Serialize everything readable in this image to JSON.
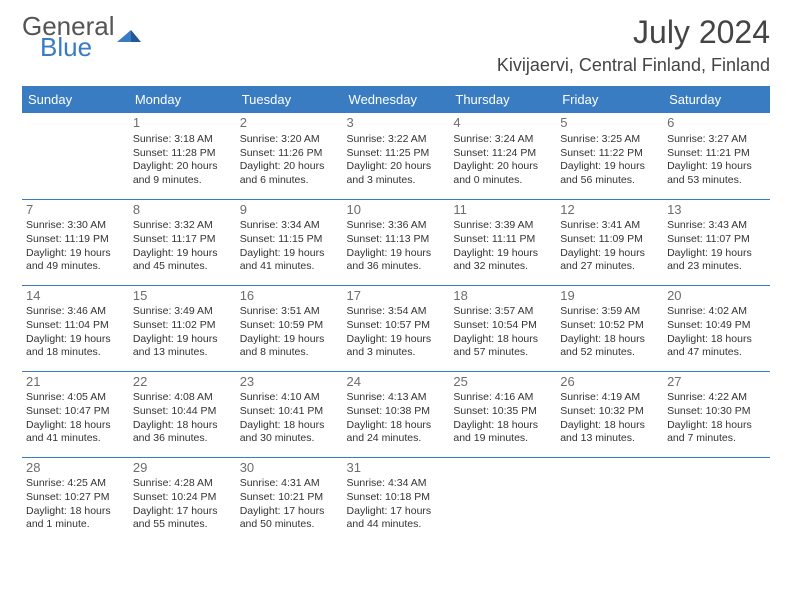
{
  "brand": {
    "line1": "General",
    "line2": "Blue"
  },
  "title": "July 2024",
  "location": "Kivijaervi, Central Finland, Finland",
  "colors": {
    "header_bg": "#3a7cc2",
    "header_fg": "#ffffff",
    "text": "#333333",
    "rule": "#3a7cc2",
    "brand_gray": "#555555",
    "brand_blue": "#3a7cc2"
  },
  "weekdays": [
    "Sunday",
    "Monday",
    "Tuesday",
    "Wednesday",
    "Thursday",
    "Friday",
    "Saturday"
  ],
  "weeks": [
    [
      null,
      {
        "d": "1",
        "sr": "Sunrise: 3:18 AM",
        "ss": "Sunset: 11:28 PM",
        "dl1": "Daylight: 20 hours",
        "dl2": "and 9 minutes."
      },
      {
        "d": "2",
        "sr": "Sunrise: 3:20 AM",
        "ss": "Sunset: 11:26 PM",
        "dl1": "Daylight: 20 hours",
        "dl2": "and 6 minutes."
      },
      {
        "d": "3",
        "sr": "Sunrise: 3:22 AM",
        "ss": "Sunset: 11:25 PM",
        "dl1": "Daylight: 20 hours",
        "dl2": "and 3 minutes."
      },
      {
        "d": "4",
        "sr": "Sunrise: 3:24 AM",
        "ss": "Sunset: 11:24 PM",
        "dl1": "Daylight: 20 hours",
        "dl2": "and 0 minutes."
      },
      {
        "d": "5",
        "sr": "Sunrise: 3:25 AM",
        "ss": "Sunset: 11:22 PM",
        "dl1": "Daylight: 19 hours",
        "dl2": "and 56 minutes."
      },
      {
        "d": "6",
        "sr": "Sunrise: 3:27 AM",
        "ss": "Sunset: 11:21 PM",
        "dl1": "Daylight: 19 hours",
        "dl2": "and 53 minutes."
      }
    ],
    [
      {
        "d": "7",
        "sr": "Sunrise: 3:30 AM",
        "ss": "Sunset: 11:19 PM",
        "dl1": "Daylight: 19 hours",
        "dl2": "and 49 minutes."
      },
      {
        "d": "8",
        "sr": "Sunrise: 3:32 AM",
        "ss": "Sunset: 11:17 PM",
        "dl1": "Daylight: 19 hours",
        "dl2": "and 45 minutes."
      },
      {
        "d": "9",
        "sr": "Sunrise: 3:34 AM",
        "ss": "Sunset: 11:15 PM",
        "dl1": "Daylight: 19 hours",
        "dl2": "and 41 minutes."
      },
      {
        "d": "10",
        "sr": "Sunrise: 3:36 AM",
        "ss": "Sunset: 11:13 PM",
        "dl1": "Daylight: 19 hours",
        "dl2": "and 36 minutes."
      },
      {
        "d": "11",
        "sr": "Sunrise: 3:39 AM",
        "ss": "Sunset: 11:11 PM",
        "dl1": "Daylight: 19 hours",
        "dl2": "and 32 minutes."
      },
      {
        "d": "12",
        "sr": "Sunrise: 3:41 AM",
        "ss": "Sunset: 11:09 PM",
        "dl1": "Daylight: 19 hours",
        "dl2": "and 27 minutes."
      },
      {
        "d": "13",
        "sr": "Sunrise: 3:43 AM",
        "ss": "Sunset: 11:07 PM",
        "dl1": "Daylight: 19 hours",
        "dl2": "and 23 minutes."
      }
    ],
    [
      {
        "d": "14",
        "sr": "Sunrise: 3:46 AM",
        "ss": "Sunset: 11:04 PM",
        "dl1": "Daylight: 19 hours",
        "dl2": "and 18 minutes."
      },
      {
        "d": "15",
        "sr": "Sunrise: 3:49 AM",
        "ss": "Sunset: 11:02 PM",
        "dl1": "Daylight: 19 hours",
        "dl2": "and 13 minutes."
      },
      {
        "d": "16",
        "sr": "Sunrise: 3:51 AM",
        "ss": "Sunset: 10:59 PM",
        "dl1": "Daylight: 19 hours",
        "dl2": "and 8 minutes."
      },
      {
        "d": "17",
        "sr": "Sunrise: 3:54 AM",
        "ss": "Sunset: 10:57 PM",
        "dl1": "Daylight: 19 hours",
        "dl2": "and 3 minutes."
      },
      {
        "d": "18",
        "sr": "Sunrise: 3:57 AM",
        "ss": "Sunset: 10:54 PM",
        "dl1": "Daylight: 18 hours",
        "dl2": "and 57 minutes."
      },
      {
        "d": "19",
        "sr": "Sunrise: 3:59 AM",
        "ss": "Sunset: 10:52 PM",
        "dl1": "Daylight: 18 hours",
        "dl2": "and 52 minutes."
      },
      {
        "d": "20",
        "sr": "Sunrise: 4:02 AM",
        "ss": "Sunset: 10:49 PM",
        "dl1": "Daylight: 18 hours",
        "dl2": "and 47 minutes."
      }
    ],
    [
      {
        "d": "21",
        "sr": "Sunrise: 4:05 AM",
        "ss": "Sunset: 10:47 PM",
        "dl1": "Daylight: 18 hours",
        "dl2": "and 41 minutes."
      },
      {
        "d": "22",
        "sr": "Sunrise: 4:08 AM",
        "ss": "Sunset: 10:44 PM",
        "dl1": "Daylight: 18 hours",
        "dl2": "and 36 minutes."
      },
      {
        "d": "23",
        "sr": "Sunrise: 4:10 AM",
        "ss": "Sunset: 10:41 PM",
        "dl1": "Daylight: 18 hours",
        "dl2": "and 30 minutes."
      },
      {
        "d": "24",
        "sr": "Sunrise: 4:13 AM",
        "ss": "Sunset: 10:38 PM",
        "dl1": "Daylight: 18 hours",
        "dl2": "and 24 minutes."
      },
      {
        "d": "25",
        "sr": "Sunrise: 4:16 AM",
        "ss": "Sunset: 10:35 PM",
        "dl1": "Daylight: 18 hours",
        "dl2": "and 19 minutes."
      },
      {
        "d": "26",
        "sr": "Sunrise: 4:19 AM",
        "ss": "Sunset: 10:32 PM",
        "dl1": "Daylight: 18 hours",
        "dl2": "and 13 minutes."
      },
      {
        "d": "27",
        "sr": "Sunrise: 4:22 AM",
        "ss": "Sunset: 10:30 PM",
        "dl1": "Daylight: 18 hours",
        "dl2": "and 7 minutes."
      }
    ],
    [
      {
        "d": "28",
        "sr": "Sunrise: 4:25 AM",
        "ss": "Sunset: 10:27 PM",
        "dl1": "Daylight: 18 hours",
        "dl2": "and 1 minute."
      },
      {
        "d": "29",
        "sr": "Sunrise: 4:28 AM",
        "ss": "Sunset: 10:24 PM",
        "dl1": "Daylight: 17 hours",
        "dl2": "and 55 minutes."
      },
      {
        "d": "30",
        "sr": "Sunrise: 4:31 AM",
        "ss": "Sunset: 10:21 PM",
        "dl1": "Daylight: 17 hours",
        "dl2": "and 50 minutes."
      },
      {
        "d": "31",
        "sr": "Sunrise: 4:34 AM",
        "ss": "Sunset: 10:18 PM",
        "dl1": "Daylight: 17 hours",
        "dl2": "and 44 minutes."
      },
      null,
      null,
      null
    ]
  ]
}
